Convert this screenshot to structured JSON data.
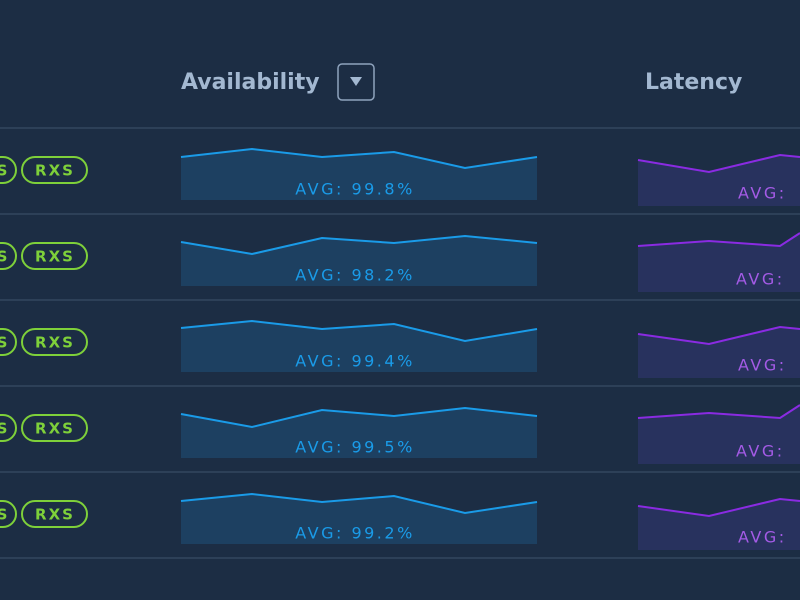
{
  "header": {
    "columns": [
      "Availability",
      "Latency"
    ]
  },
  "rows": [
    {
      "tags": [
        "S",
        "RXS"
      ],
      "availability": "AVG: 99.8%",
      "latency": "AVG:"
    },
    {
      "tags": [
        "S",
        "RXS"
      ],
      "availability": "AVG: 98.2%",
      "latency": "AVG:"
    },
    {
      "tags": [
        "S",
        "RXS"
      ],
      "availability": "AVG: 99.4%",
      "latency": "AVG:"
    },
    {
      "tags": [
        "S",
        "RXS"
      ],
      "availability": "AVG: 99.5%",
      "latency": "AVG:"
    },
    {
      "tags": [
        "S",
        "RXS"
      ],
      "availability": "AVG: 99.2%",
      "latency": "AVG:"
    }
  ]
}
